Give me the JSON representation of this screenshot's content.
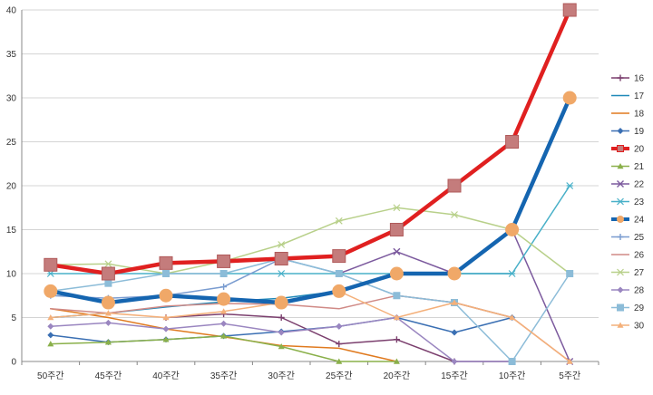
{
  "chart_data": {
    "type": "line",
    "categories": [
      "50주간",
      "45주간",
      "40주간",
      "35주간",
      "30주간",
      "25주간",
      "20주간",
      "15주간",
      "10주간",
      "5주간"
    ],
    "y_ticks": [
      "0",
      "5",
      "10",
      "15",
      "20",
      "25",
      "30",
      "35",
      "40"
    ],
    "ylim": [
      0,
      40
    ],
    "grid": "horizontal",
    "legend_position": "right",
    "series": [
      {
        "name": "16",
        "color": "#7b3f6e",
        "marker": "plus",
        "emphasis": false,
        "values": [
          null,
          null,
          5,
          5.4,
          5,
          2,
          2.5,
          0,
          0,
          null
        ]
      },
      {
        "name": "17",
        "color": "#1e88b8",
        "marker": "none",
        "emphasis": false,
        "values": [
          5,
          5.5,
          6.2,
          6.8,
          7.2,
          8,
          10,
          10,
          10,
          null
        ]
      },
      {
        "name": "18",
        "color": "#e07a1f",
        "marker": "none",
        "emphasis": false,
        "values": [
          6,
          5,
          3.7,
          2.8,
          1.8,
          1.5,
          0,
          null,
          null,
          null
        ]
      },
      {
        "name": "19",
        "color": "#3a6fb3",
        "marker": "diamond",
        "emphasis": false,
        "values": [
          3,
          2.2,
          2.5,
          2.9,
          3.4,
          4,
          5,
          3.3,
          5,
          null
        ]
      },
      {
        "name": "20",
        "color": "#e02020",
        "marker": "square",
        "marker_fill": "#c47c7c",
        "emphasis": true,
        "values": [
          11,
          10,
          11.2,
          11.4,
          11.7,
          12,
          15,
          20,
          25,
          40
        ]
      },
      {
        "name": "21",
        "color": "#8ab04a",
        "marker": "triangle",
        "emphasis": false,
        "values": [
          2,
          2.2,
          2.5,
          2.9,
          1.7,
          0,
          0,
          null,
          null,
          null
        ]
      },
      {
        "name": "22",
        "color": "#7c5a9e",
        "marker": "x",
        "emphasis": false,
        "values": [
          null,
          null,
          null,
          null,
          null,
          10,
          12.5,
          10,
          15,
          0
        ]
      },
      {
        "name": "23",
        "color": "#48b0c8",
        "marker": "star",
        "emphasis": false,
        "values": [
          10,
          10,
          10,
          10,
          10,
          10,
          10,
          10,
          10,
          20
        ]
      },
      {
        "name": "24",
        "color": "#1565b0",
        "marker": "circle",
        "marker_fill": "#f0a868",
        "emphasis": true,
        "values": [
          8,
          6.7,
          7.5,
          7.1,
          6.7,
          8,
          10,
          10,
          15,
          30
        ]
      },
      {
        "name": "25",
        "color": "#7a9cd0",
        "marker": "plus",
        "emphasis": false,
        "values": [
          7.5,
          7.2,
          7.5,
          8.5,
          11.7,
          10,
          7.5,
          6.7,
          5,
          null
        ]
      },
      {
        "name": "26",
        "color": "#d08a86",
        "marker": "none",
        "emphasis": false,
        "values": [
          6,
          5.5,
          6.3,
          6.6,
          6.5,
          6,
          7.5,
          6.7,
          5,
          0
        ]
      },
      {
        "name": "27",
        "color": "#b8d08a",
        "marker": "star",
        "emphasis": false,
        "values": [
          11,
          11.1,
          10,
          11.4,
          13.3,
          16,
          17.5,
          16.7,
          15,
          10
        ]
      },
      {
        "name": "28",
        "color": "#9a86c0",
        "marker": "diamond",
        "emphasis": false,
        "values": [
          4,
          4.4,
          3.7,
          4.3,
          3.3,
          4,
          5,
          0,
          0,
          null
        ]
      },
      {
        "name": "29",
        "color": "#8cbcd8",
        "marker": "square",
        "emphasis": false,
        "values": [
          8,
          8.9,
          10,
          10,
          11.7,
          10,
          7.5,
          6.7,
          0,
          10
        ]
      },
      {
        "name": "30",
        "color": "#f4b07a",
        "marker": "triangle",
        "emphasis": false,
        "values": [
          5,
          5.5,
          5,
          5.7,
          6.7,
          8,
          5,
          6.7,
          5,
          0
        ]
      }
    ]
  }
}
